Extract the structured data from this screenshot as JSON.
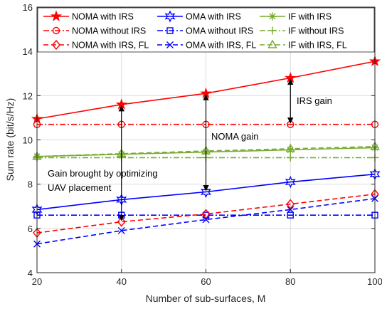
{
  "chart_data": {
    "type": "line",
    "xlabel": "Number of sub-surfaces, M",
    "ylabel": "Sum rate (bit/s/Hz)",
    "xlim": [
      20,
      100
    ],
    "ylim": [
      4,
      16
    ],
    "xticks": [
      20,
      40,
      60,
      80,
      100
    ],
    "yticks": [
      4,
      6,
      8,
      10,
      12,
      14,
      16
    ],
    "x": [
      20,
      40,
      60,
      80,
      100
    ],
    "grid": true,
    "legend_placement": "top-left",
    "series": [
      {
        "name": "NOMA with IRS",
        "values": [
          10.95,
          11.6,
          12.1,
          12.8,
          13.55
        ],
        "color": "#ff0000",
        "dash": "solid",
        "marker": "star"
      },
      {
        "name": "OMA with IRS",
        "values": [
          6.85,
          7.3,
          7.65,
          8.1,
          8.45
        ],
        "color": "#0000ff",
        "dash": "solid",
        "marker": "hexagram"
      },
      {
        "name": "IF with IRS",
        "values": [
          9.25,
          9.35,
          9.45,
          9.55,
          9.65
        ],
        "color": "#77ac30",
        "dash": "solid",
        "marker": "asterisk"
      },
      {
        "name": "NOMA without IRS",
        "values": [
          10.7,
          10.7,
          10.7,
          10.7,
          10.7
        ],
        "color": "#ff0000",
        "dash": "dashdot",
        "marker": "circle"
      },
      {
        "name": "OMA without IRS",
        "values": [
          6.6,
          6.6,
          6.6,
          6.6,
          6.6
        ],
        "color": "#0000ff",
        "dash": "dashdot",
        "marker": "square"
      },
      {
        "name": "IF without IRS",
        "values": [
          9.2,
          9.2,
          9.2,
          9.2,
          9.2
        ],
        "color": "#77ac30",
        "dash": "dashdot",
        "marker": "plus"
      },
      {
        "name": "NOMA with IRS, FL",
        "values": [
          5.8,
          6.3,
          6.65,
          7.1,
          7.55
        ],
        "color": "#ff0000",
        "dash": "dashed",
        "marker": "diamond"
      },
      {
        "name": "OMA with IRS, FL",
        "values": [
          5.3,
          5.9,
          6.4,
          6.85,
          7.35
        ],
        "color": "#0000ff",
        "dash": "dashed",
        "marker": "x"
      },
      {
        "name": "IF with IRS, FL",
        "values": [
          9.25,
          9.38,
          9.5,
          9.6,
          9.7
        ],
        "color": "#77ac30",
        "dash": "dashed",
        "marker": "triangle"
      }
    ],
    "annotations": [
      {
        "text": "IRS gain",
        "arrow_x": 80,
        "arrow_y": [
          10.7,
          12.8
        ]
      },
      {
        "text": "NOMA gain",
        "arrow_x": 60,
        "arrow_y": [
          7.65,
          12.1
        ]
      },
      {
        "text": "Gain brought by optimizing",
        "text2": "UAV placement",
        "arrow_x": 40,
        "arrow_y": [
          6.3,
          11.6
        ]
      }
    ]
  }
}
